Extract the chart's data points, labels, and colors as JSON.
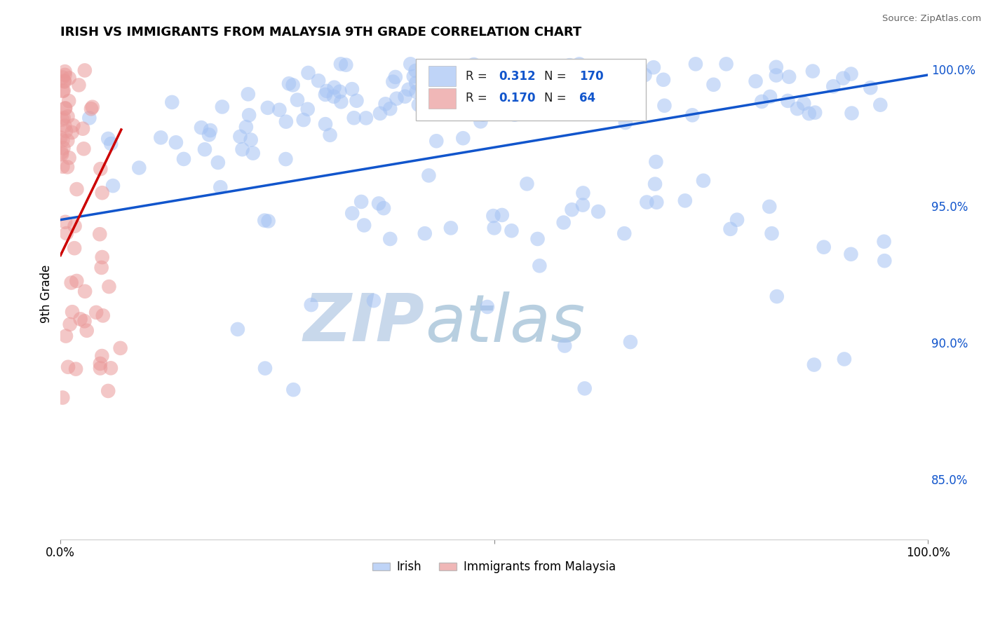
{
  "title": "IRISH VS IMMIGRANTS FROM MALAYSIA 9TH GRADE CORRELATION CHART",
  "source": "Source: ZipAtlas.com",
  "ylabel": "9th Grade",
  "right_yticks": [
    0.85,
    0.9,
    0.95,
    1.0
  ],
  "right_yticklabels": [
    "85.0%",
    "90.0%",
    "95.0%",
    "100.0%"
  ],
  "legend_blue_r": "0.312",
  "legend_blue_n": "170",
  "legend_pink_r": "0.170",
  "legend_pink_n": "64",
  "blue_color": "#a4c2f4",
  "pink_color": "#ea9999",
  "blue_line_color": "#1155cc",
  "pink_line_color": "#cc0000",
  "watermark_zip": "ZIP",
  "watermark_atlas": "atlas",
  "watermark_color_zip": "#c8d8eb",
  "watermark_color_atlas": "#b8cfe0",
  "background_color": "#ffffff",
  "grid_color": "#cccccc",
  "title_color": "#000000",
  "legend_r_color": "#1155cc",
  "legend_n_color": "#1155cc",
  "ylim_low": 0.828,
  "ylim_high": 1.008,
  "xlim_low": 0.0,
  "xlim_high": 1.0
}
